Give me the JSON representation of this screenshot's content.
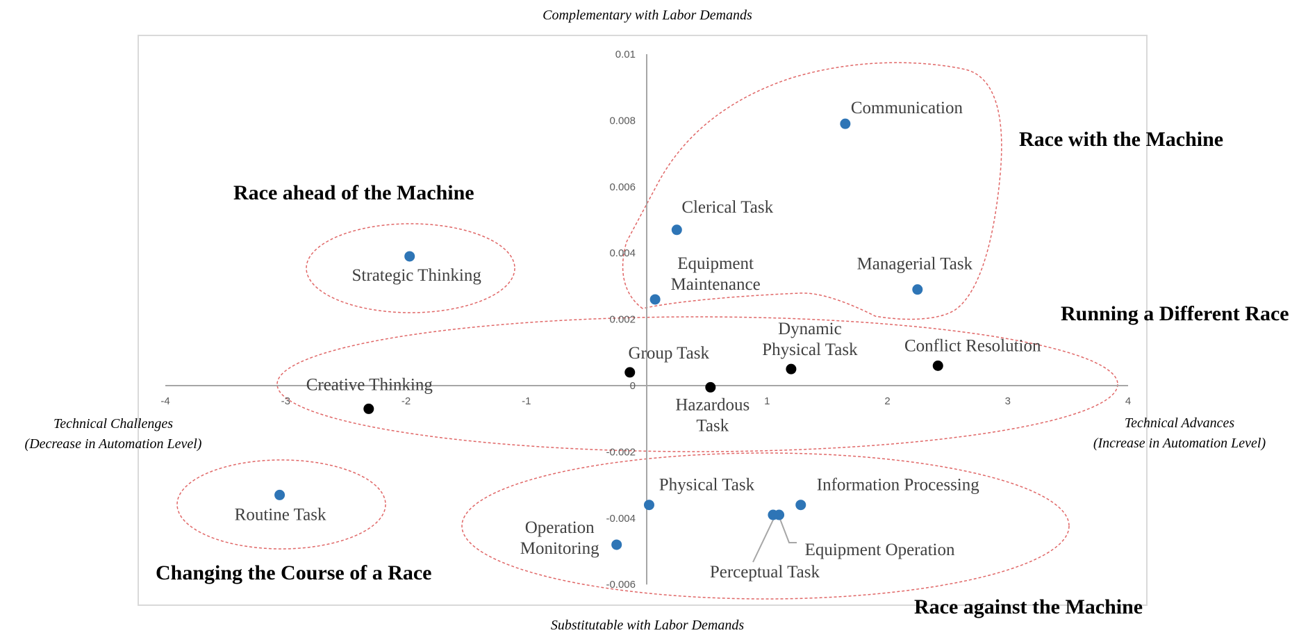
{
  "chart_data": {
    "type": "scatter",
    "title": "",
    "xlim": [
      -4,
      4
    ],
    "ylim": [
      -0.006,
      0.01
    ],
    "x_ticks": [
      {
        "value": -4,
        "label": "-4"
      },
      {
        "value": -3,
        "label": "-3"
      },
      {
        "value": -2,
        "label": "-2"
      },
      {
        "value": -1,
        "label": "-1"
      },
      {
        "value": 0,
        "label": "0"
      },
      {
        "value": 1,
        "label": "1"
      },
      {
        "value": 2,
        "label": "2"
      },
      {
        "value": 3,
        "label": "3"
      },
      {
        "value": 4,
        "label": "4"
      }
    ],
    "y_ticks": [
      {
        "value": 0.01,
        "label": "0.01"
      },
      {
        "value": 0.008,
        "label": "0.008"
      },
      {
        "value": 0.006,
        "label": "0.006"
      },
      {
        "value": 0.004,
        "label": "0.004"
      },
      {
        "value": 0.002,
        "label": "0.002"
      },
      {
        "value": 0,
        "label": "0"
      },
      {
        "value": -0.002,
        "label": "-0.002"
      },
      {
        "value": -0.004,
        "label": "-0.004"
      },
      {
        "value": -0.006,
        "label": "-0.006"
      }
    ],
    "axis_titles": {
      "top": "Complementary with Labor Demands",
      "bottom": "Substitutable with Labor Demands",
      "left": [
        "Technical Challenges",
        "(Decrease in Automation Level)"
      ],
      "right": [
        "Technical Advances",
        "(Increase in Automation Level)"
      ]
    },
    "colors": {
      "blue": "#2e75b6",
      "black": "#000000",
      "region_border": "#e06666",
      "axis": "#a6a6a6",
      "frame": "#d9d9d9"
    },
    "points": [
      {
        "name": "Communication",
        "lines": [
          "Communication"
        ],
        "x": 1.65,
        "y": 0.0079,
        "color": "blue"
      },
      {
        "name": "Clerical Task",
        "lines": [
          "Clerical Task"
        ],
        "x": 0.25,
        "y": 0.0047,
        "color": "blue"
      },
      {
        "name": "Equipment Maintenance",
        "lines": [
          "Equipment",
          "Maintenance"
        ],
        "x": 0.07,
        "y": 0.0026,
        "color": "blue"
      },
      {
        "name": "Managerial Task",
        "lines": [
          "Managerial Task"
        ],
        "x": 2.25,
        "y": 0.0029,
        "color": "blue"
      },
      {
        "name": "Strategic Thinking",
        "lines": [
          "Strategic Thinking"
        ],
        "x": -1.97,
        "y": 0.0039,
        "color": "blue"
      },
      {
        "name": "Dynamic Physical Task",
        "lines": [
          "Dynamic",
          "Physical Task"
        ],
        "x": 1.2,
        "y": 0.0005,
        "color": "black"
      },
      {
        "name": "Conflict Resolution",
        "lines": [
          "Conflict Resolution"
        ],
        "x": 2.42,
        "y": 0.0006,
        "color": "black"
      },
      {
        "name": "Group Task",
        "lines": [
          "Group Task"
        ],
        "x": -0.14,
        "y": 0.0004,
        "color": "black"
      },
      {
        "name": "Hazardous Task",
        "lines": [
          "Hazardous",
          "Task"
        ],
        "x": 0.53,
        "y": -5e-05,
        "color": "black"
      },
      {
        "name": "Creative Thinking",
        "lines": [
          "Creative Thinking"
        ],
        "x": -2.31,
        "y": -0.0007,
        "color": "black"
      },
      {
        "name": "Routine Task",
        "lines": [
          "Routine Task"
        ],
        "x": -3.05,
        "y": -0.0033,
        "color": "blue"
      },
      {
        "name": "Physical Task",
        "lines": [
          "Physical Task"
        ],
        "x": 0.02,
        "y": -0.0036,
        "color": "blue"
      },
      {
        "name": "Information Processing",
        "lines": [
          "Information Processing"
        ],
        "x": 1.28,
        "y": -0.0036,
        "color": "blue"
      },
      {
        "name": "Equipment Operation",
        "lines": [
          "Equipment Operation"
        ],
        "x": 1.1,
        "y": -0.0039,
        "color": "blue"
      },
      {
        "name": "Perceptual Task",
        "lines": [
          "Perceptual Task"
        ],
        "x": 1.05,
        "y": -0.0039,
        "color": "blue"
      },
      {
        "name": "Operation Monitoring",
        "lines": [
          "Operation",
          "Monitoring"
        ],
        "x": -0.25,
        "y": -0.0048,
        "color": "blue"
      }
    ],
    "regions": [
      {
        "name": "Race with the Machine",
        "label": "Race with the Machine"
      },
      {
        "name": "Race ahead of the Machine",
        "label": "Race ahead of the Machine"
      },
      {
        "name": "Running a Different Race",
        "label": "Running a Different Race"
      },
      {
        "name": "Changing the Course of a Race",
        "label": "Changing the Course of a Race"
      },
      {
        "name": "Race against the Machine",
        "label": "Race against the Machine"
      }
    ]
  }
}
